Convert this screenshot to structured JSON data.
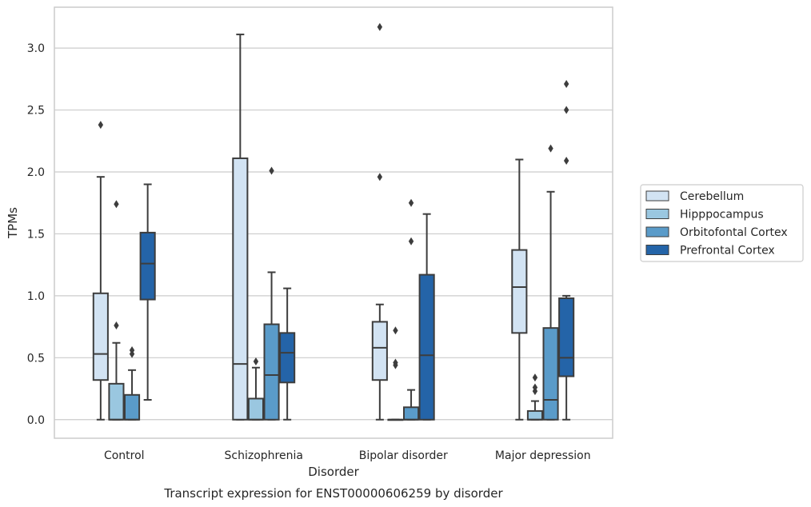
{
  "chart_data": {
    "type": "box",
    "title": "Transcript expression for ENST00000606259 by disorder",
    "xlabel": "Disorder",
    "ylabel": "TPMs",
    "ylim": [
      -0.15,
      3.33
    ],
    "yticks": [
      "0.0",
      "0.5",
      "1.0",
      "1.5",
      "2.0",
      "2.5",
      "3.0"
    ],
    "grid": "horizontal",
    "legend_position": "right",
    "categories": [
      "Control",
      "Schizophrenia",
      "Bipolar disorder",
      "Major depression"
    ],
    "series": [
      {
        "name": "Cerebellum",
        "color": "#d2e3f3",
        "boxes": [
          {
            "whisker_low": 0.0,
            "q1": 0.32,
            "median": 0.53,
            "q3": 1.02,
            "whisker_high": 1.96,
            "outliers": [
              2.38
            ]
          },
          {
            "whisker_low": 0.0,
            "q1": 0.0,
            "median": 0.45,
            "q3": 2.11,
            "whisker_high": 3.11,
            "outliers": []
          },
          {
            "whisker_low": 0.0,
            "q1": 0.32,
            "median": 0.58,
            "q3": 0.79,
            "whisker_high": 0.93,
            "outliers": [
              1.96,
              3.17
            ]
          },
          {
            "whisker_low": 0.0,
            "q1": 0.7,
            "median": 1.07,
            "q3": 1.37,
            "whisker_high": 2.1,
            "outliers": []
          }
        ]
      },
      {
        "name": "Hipppocampus",
        "color": "#9ac7e0",
        "boxes": [
          {
            "whisker_low": 0.0,
            "q1": 0.0,
            "median": 0.0,
            "q3": 0.29,
            "whisker_high": 0.62,
            "outliers": [
              0.76,
              1.74
            ]
          },
          {
            "whisker_low": 0.0,
            "q1": 0.0,
            "median": 0.0,
            "q3": 0.17,
            "whisker_high": 0.42,
            "outliers": [
              0.47
            ]
          },
          {
            "whisker_low": 0.0,
            "q1": 0.0,
            "median": 0.0,
            "q3": 0.0,
            "whisker_high": 0.0,
            "outliers": [
              0.44,
              0.46,
              0.72
            ]
          },
          {
            "whisker_low": 0.0,
            "q1": 0.0,
            "median": 0.0,
            "q3": 0.07,
            "whisker_high": 0.15,
            "outliers": [
              0.23,
              0.26,
              0.34
            ]
          }
        ]
      },
      {
        "name": "Orbitofontal Cortex",
        "color": "#5a9bc9",
        "boxes": [
          {
            "whisker_low": 0.0,
            "q1": 0.0,
            "median": 0.0,
            "q3": 0.2,
            "whisker_high": 0.4,
            "outliers": [
              0.53,
              0.56
            ]
          },
          {
            "whisker_low": 0.0,
            "q1": 0.0,
            "median": 0.36,
            "q3": 0.77,
            "whisker_high": 1.19,
            "outliers": [
              2.01
            ]
          },
          {
            "whisker_low": 0.0,
            "q1": 0.0,
            "median": 0.0,
            "q3": 0.1,
            "whisker_high": 0.24,
            "outliers": [
              1.44,
              1.75
            ]
          },
          {
            "whisker_low": 0.0,
            "q1": 0.0,
            "median": 0.16,
            "q3": 0.74,
            "whisker_high": 1.84,
            "outliers": [
              2.19
            ]
          }
        ]
      },
      {
        "name": "Prefrontal Cortex",
        "color": "#2464a8",
        "boxes": [
          {
            "whisker_low": 0.16,
            "q1": 0.97,
            "median": 1.26,
            "q3": 1.51,
            "whisker_high": 1.9,
            "outliers": []
          },
          {
            "whisker_low": 0.0,
            "q1": 0.3,
            "median": 0.54,
            "q3": 0.7,
            "whisker_high": 1.06,
            "outliers": []
          },
          {
            "whisker_low": 0.0,
            "q1": 0.0,
            "median": 0.52,
            "q3": 1.17,
            "whisker_high": 1.66,
            "outliers": []
          },
          {
            "whisker_low": 0.0,
            "q1": 0.35,
            "median": 0.5,
            "q3": 0.98,
            "whisker_high": 1.0,
            "outliers": [
              2.09,
              2.5,
              2.71
            ]
          }
        ]
      }
    ]
  },
  "colors": {
    "edge": "#3d3d3d",
    "grid": "#cccccc",
    "axes_frame": "#cccccc",
    "outlier": "#3d3d3d"
  }
}
